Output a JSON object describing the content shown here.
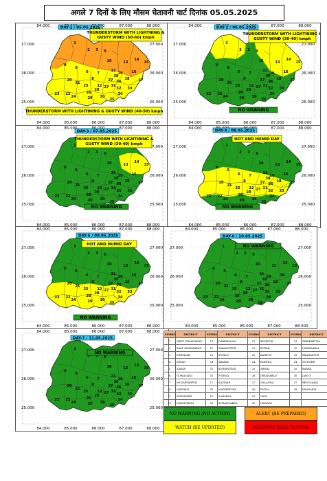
{
  "title": "अगले 7 दिनों के लिए मौसम चेतावनी चार्ट  दिनांक  05.05.2025",
  "colors": {
    "green": "#1f9a1f",
    "yellow": "#ffff00",
    "orange": "#ffa020",
    "red": "#ff0000",
    "lightgreen": "#92d050"
  },
  "axis": {
    "x_ticks": [
      "84.000",
      "85.000",
      "86.000",
      "87.000",
      "88.000"
    ],
    "y_ticks": [
      "27.000",
      "26.000",
      "25.000"
    ],
    "x_ticks_alt": [
      "84.000",
      "85.000",
      "86.000",
      "87.000",
      "88.000"
    ],
    "y_ticks_alt": [
      "27.000",
      "26.000",
      "25.000"
    ]
  },
  "days": [
    {
      "label": "DAY-1 / 05.05.2025",
      "top_note": "THUNDERSTORM WITH LIGHTNING & GUSTY WIND (50-60) kmph",
      "bottom_note": "THUNDERSTORM WITH LIGHTINING  & GUSTY WIND (40-50) kmph",
      "no_warning": ""
    },
    {
      "label": "DAY-2 / 06.05.2025",
      "top_note": "THUNDERSTORM WITH LIGHTINING  & GUSTY WIND (30-40) kmph",
      "bottom_note": "",
      "no_warning": "NO WARNING"
    },
    {
      "label": "DAY-3 / 07.05.2025",
      "top_note": "THUNDERSTORM WITH LIGHTINING  & GUSTY WIND (30-40) kmph",
      "bottom_note": "",
      "no_warning": "NO WARNING"
    },
    {
      "label": "DAY-4 / 08.05.2025",
      "top_note": "HOT AND HUMID DAY",
      "bottom_note": "",
      "no_warning": "NO WARNING"
    },
    {
      "label": "DAY-5 / 09.05.2025",
      "top_note": "HOT AND HUMID DAY",
      "bottom_note": "",
      "no_warning": "NO WARNING"
    },
    {
      "label": "DAY-6 / 10.05.2025",
      "top_note": "",
      "bottom_note": "",
      "no_warning": "NO WARNING"
    },
    {
      "label": "DAY-7 / 11.05.2025",
      "top_note": "",
      "bottom_note": "",
      "no_warning": "NO WARNING"
    }
  ],
  "district_table": {
    "headers": [
      "SYMBOL",
      "DISTRICT",
      "SYMBOL",
      "DISTRICT",
      "SYMBOL",
      "DISTRICT",
      "SYMBOL",
      "DISTRICT"
    ],
    "rows": [
      [
        "1",
        "WEST CHAMPARAN",
        "11",
        "DARBHANGA",
        "21",
        "BHOJPUR",
        "31",
        "SHEIKHPURA"
      ],
      [
        "2",
        "EAST CHAMPARAN",
        "12",
        "SAMASTIPUR",
        "22",
        "BUXAR",
        "32",
        "LAKHISARAI"
      ],
      [
        "3",
        "SHEOHAR",
        "13",
        "SUPAUL",
        "23",
        "KAIMUR",
        "33",
        "BHAGALPUR"
      ],
      [
        "4",
        "SIWAN",
        "14",
        "ARARIA",
        "24",
        "ROHTAS",
        "34",
        "MUNGER"
      ],
      [
        "5",
        "SARAN",
        "15",
        "KISHANGANJ",
        "25",
        "ARWAL",
        "35",
        "BANKA"
      ],
      [
        "6",
        "GOPALGANJ",
        "16",
        "PURNIA",
        "26",
        "JEHANABAD",
        "36",
        "JAMUI"
      ],
      [
        "7",
        "MUZAFFARPUR",
        "17",
        "KATIHAR",
        "27",
        "NALANDA",
        "37",
        "BEGUSARAI"
      ],
      [
        "8",
        "VAISHALI",
        "18",
        "MADHEPURA",
        "28",
        "PATNA",
        "38",
        "KHAGARIA"
      ],
      [
        "9",
        "SITAMARHI",
        "19",
        "SAHARSA",
        "29",
        "GAYA",
        "",
        ""
      ],
      [
        "10",
        "MADHUBANI",
        "20",
        "AURANGABAD",
        "30",
        "NAWADA",
        "",
        ""
      ]
    ]
  },
  "legend": {
    "no_warning": "NO WARNING (NO ACTION)",
    "alert": "ALERT (BE PREPARED)",
    "watch": "WATCH (BE UPDATED)",
    "warning": "WARNING (TAKE ACTION)"
  }
}
